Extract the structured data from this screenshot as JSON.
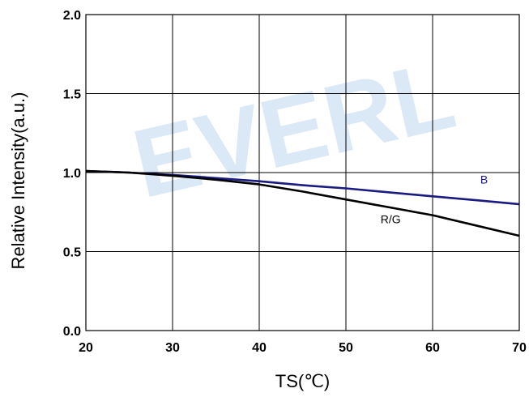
{
  "chart_data": {
    "type": "line",
    "title": "",
    "xlabel": "TS(℃)",
    "ylabel": "Relative Intensity(a.u.)",
    "xlim": [
      20,
      70
    ],
    "ylim": [
      0.0,
      2.0
    ],
    "xticks": [
      20,
      30,
      40,
      50,
      60,
      70
    ],
    "xtick_labels": [
      "20",
      "30",
      "40",
      "50",
      "60",
      "70"
    ],
    "yticks": [
      0.0,
      0.5,
      1.0,
      1.5,
      2.0
    ],
    "ytick_labels": [
      "0.0",
      "0.5",
      "1.0",
      "1.5",
      "2.0"
    ],
    "grid": true,
    "legend": "none",
    "series": [
      {
        "name": "B",
        "color": "#1a1a80",
        "x": [
          20,
          25,
          30,
          35,
          40,
          45,
          50,
          55,
          60,
          65,
          70
        ],
        "y": [
          1.01,
          1.0,
          0.985,
          0.965,
          0.945,
          0.92,
          0.9,
          0.875,
          0.85,
          0.825,
          0.8
        ]
      },
      {
        "name": "R/G",
        "color": "#000000",
        "x": [
          20,
          25,
          30,
          35,
          40,
          45,
          50,
          55,
          60,
          65,
          70
        ],
        "y": [
          1.01,
          1.0,
          0.98,
          0.955,
          0.925,
          0.88,
          0.83,
          0.78,
          0.73,
          0.665,
          0.6
        ]
      }
    ],
    "annotations": [
      {
        "text": "B",
        "x": 65.5,
        "y": 0.93,
        "color": "#1a1a80"
      },
      {
        "text": "R/G",
        "x": 54,
        "y": 0.68,
        "color": "#000000"
      }
    ]
  },
  "watermark": {
    "text": "EVERL"
  }
}
